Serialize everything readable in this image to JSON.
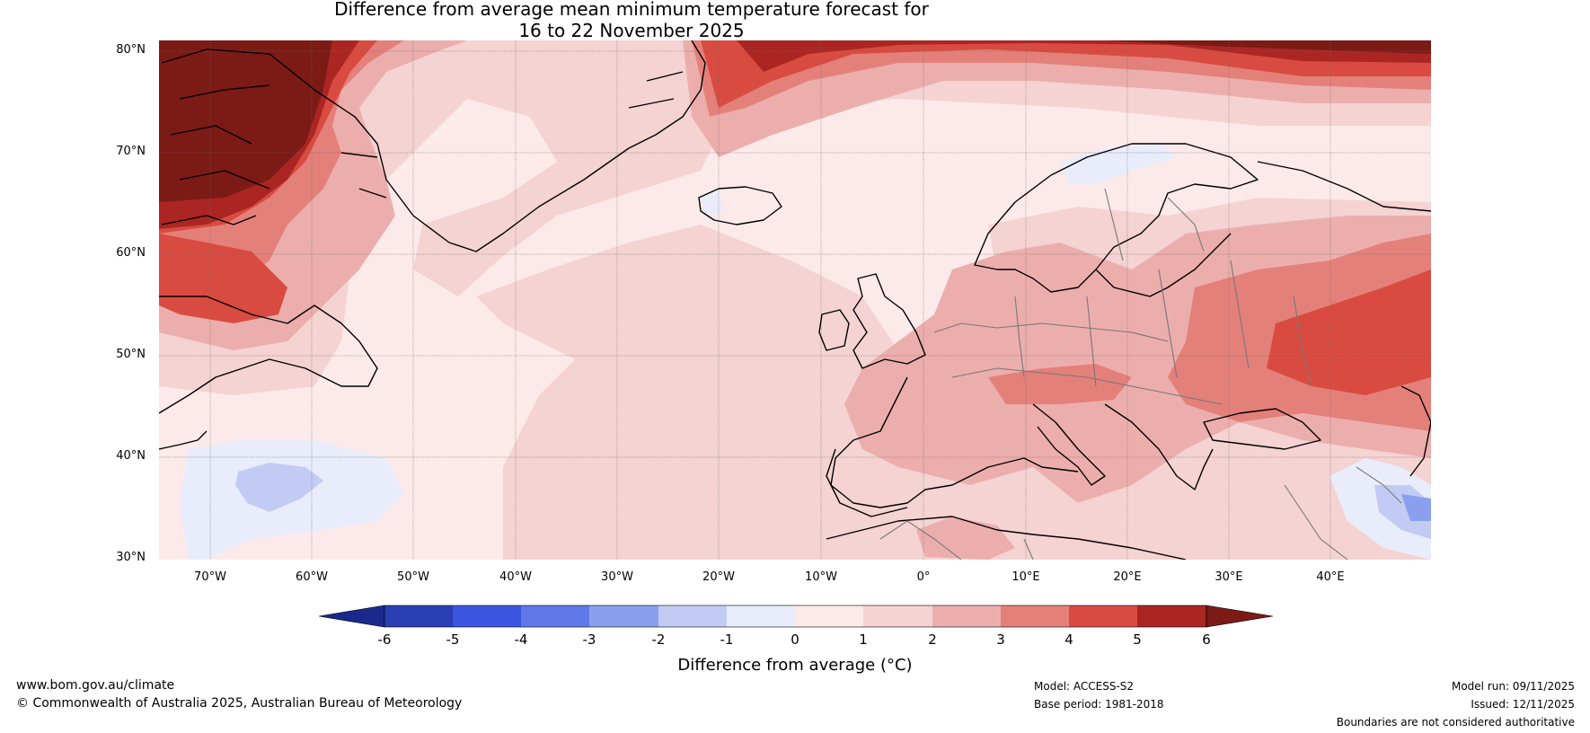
{
  "title": {
    "line1": "Difference from average mean minimum temperature forecast for",
    "line2": "16 to 22 November 2025"
  },
  "map": {
    "latitude_labels": [
      "80°N",
      "70°N",
      "60°N",
      "50°N",
      "40°N",
      "30°N"
    ],
    "longitude_labels": [
      "70°W",
      "60°W",
      "50°W",
      "40°W",
      "30°W",
      "20°W",
      "10°W",
      "0°",
      "10°E",
      "20°E",
      "30°E",
      "40°E"
    ]
  },
  "colorbar": {
    "ticks": [
      "-6",
      "-5",
      "-4",
      "-3",
      "-2",
      "-1",
      "0",
      "1",
      "2",
      "3",
      "4",
      "5",
      "6"
    ],
    "colors": [
      "#1a2a8c",
      "#2a3fb4",
      "#3a55e0",
      "#6078e8",
      "#8aa0ee",
      "#c2cbf4",
      "#e9ecfb",
      "#fceaea",
      "#f4d3d2",
      "#ecaeac",
      "#e4807a",
      "#d94b40",
      "#ab2622",
      "#7c1a16"
    ],
    "label": "Difference from average (°C)"
  },
  "footer": {
    "website": "www.bom.gov.au/climate",
    "copyright": "© Commonwealth of Australia 2025, Australian Bureau of Meteorology",
    "model": "Model: ACCESS-S2",
    "base_period": "Base period: 1981-2018",
    "model_run": "Model run: 09/11/2025",
    "issued": "Issued: 12/11/2025",
    "disclaimer": "Boundaries are not considered authoritative"
  }
}
